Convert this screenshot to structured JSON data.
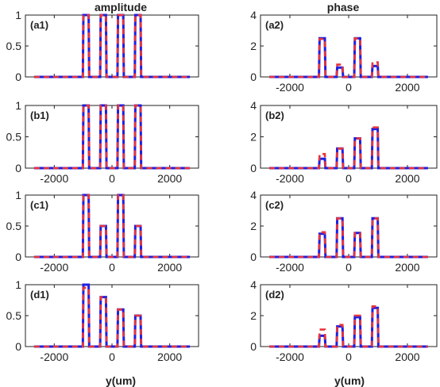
{
  "column_titles": [
    "amplitude",
    "phase"
  ],
  "x_axis_label": "y(um)",
  "colors": {
    "blue_series": "#1f1fe0",
    "red_series": "#e8343a",
    "axes": "#222222"
  },
  "chart_data": [
    {
      "label": "(a1)",
      "type": "line",
      "xlim": [
        -3000,
        3000
      ],
      "ylim": [
        0,
        1
      ],
      "xticks": [
        -2000,
        0,
        2000
      ],
      "yticks": [
        0,
        0.5,
        1
      ],
      "ytick_labels": [
        "0",
        "0.5",
        "1"
      ],
      "x_ticks_labeled": false,
      "pulses": [
        {
          "center": -900,
          "height": 1,
          "red_height": 1
        },
        {
          "center": -300,
          "height": 1,
          "red_height": 1
        },
        {
          "center": 300,
          "height": 1,
          "red_height": 1
        },
        {
          "center": 900,
          "height": 1,
          "red_height": 1
        }
      ]
    },
    {
      "label": "(a2)",
      "type": "line",
      "xlim": [
        -3000,
        3000
      ],
      "ylim": [
        0,
        4
      ],
      "xticks": [
        -2000,
        0,
        2000
      ],
      "yticks": [
        0,
        2,
        4
      ],
      "ytick_labels": [
        "0",
        "2",
        "4"
      ],
      "x_ticks_labeled": true,
      "pulses": [
        {
          "center": -900,
          "height": 2.5,
          "red_height": 2.45
        },
        {
          "center": -300,
          "height": 0.6,
          "red_height": 0.8
        },
        {
          "center": 300,
          "height": 2.5,
          "red_height": 2.5
        },
        {
          "center": 900,
          "height": 0.7,
          "red_height": 0.95
        }
      ]
    },
    {
      "label": "(b1)",
      "type": "line",
      "xlim": [
        -3000,
        3000
      ],
      "ylim": [
        0,
        1
      ],
      "xticks": [
        -2000,
        0,
        2000
      ],
      "yticks": [
        0,
        0.5,
        1
      ],
      "ytick_labels": [
        "0",
        "0.5",
        "1"
      ],
      "x_ticks_labeled": true,
      "pulses": [
        {
          "center": -900,
          "height": 1,
          "red_height": 1
        },
        {
          "center": -300,
          "height": 1,
          "red_height": 1
        },
        {
          "center": 300,
          "height": 1,
          "red_height": 1
        },
        {
          "center": 900,
          "height": 1,
          "red_height": 1
        }
      ]
    },
    {
      "label": "(b2)",
      "type": "line",
      "xlim": [
        -3000,
        3000
      ],
      "ylim": [
        0,
        4
      ],
      "xticks": [
        -2000,
        0,
        2000
      ],
      "yticks": [
        0,
        2,
        4
      ],
      "ytick_labels": [
        "0",
        "2",
        "4"
      ],
      "x_ticks_labeled": true,
      "pulses": [
        {
          "center": -900,
          "height": 0.6,
          "red_height": 0.9
        },
        {
          "center": -300,
          "height": 1.25,
          "red_height": 1.25
        },
        {
          "center": 300,
          "height": 1.9,
          "red_height": 1.9
        },
        {
          "center": 900,
          "height": 2.5,
          "red_height": 2.6
        }
      ]
    },
    {
      "label": "(c1)",
      "type": "line",
      "xlim": [
        -3000,
        3000
      ],
      "ylim": [
        0,
        1
      ],
      "xticks": [
        -2000,
        0,
        2000
      ],
      "yticks": [
        0,
        0.5,
        1
      ],
      "ytick_labels": [
        "0",
        "0.5",
        "1"
      ],
      "x_ticks_labeled": true,
      "pulses": [
        {
          "center": -900,
          "height": 1,
          "red_height": 1
        },
        {
          "center": -300,
          "height": 0.5,
          "red_height": 0.5
        },
        {
          "center": 300,
          "height": 1,
          "red_height": 1
        },
        {
          "center": 900,
          "height": 0.5,
          "red_height": 0.5
        }
      ]
    },
    {
      "label": "(c2)",
      "type": "line",
      "xlim": [
        -3000,
        3000
      ],
      "ylim": [
        0,
        4
      ],
      "xticks": [
        -2000,
        0,
        2000
      ],
      "yticks": [
        0,
        2,
        4
      ],
      "ytick_labels": [
        "0",
        "2",
        "4"
      ],
      "x_ticks_labeled": true,
      "pulses": [
        {
          "center": -900,
          "height": 1.5,
          "red_height": 1.6
        },
        {
          "center": -300,
          "height": 2.5,
          "red_height": 2.5
        },
        {
          "center": 300,
          "height": 1.55,
          "red_height": 1.55
        },
        {
          "center": 900,
          "height": 2.5,
          "red_height": 2.5
        }
      ]
    },
    {
      "label": "(d1)",
      "type": "line",
      "xlim": [
        -3000,
        3000
      ],
      "ylim": [
        0,
        1
      ],
      "xticks": [
        -2000,
        0,
        2000
      ],
      "yticks": [
        0,
        0.5,
        1
      ],
      "ytick_labels": [
        "0",
        "0.5",
        "1"
      ],
      "x_ticks_labeled": true,
      "pulses": [
        {
          "center": -900,
          "height": 1,
          "red_height": 0.95
        },
        {
          "center": -300,
          "height": 0.8,
          "red_height": 0.8
        },
        {
          "center": 300,
          "height": 0.6,
          "red_height": 0.6
        },
        {
          "center": 900,
          "height": 0.5,
          "red_height": 0.5
        }
      ]
    },
    {
      "label": "(d2)",
      "type": "line",
      "xlim": [
        -3000,
        3000
      ],
      "ylim": [
        0,
        4
      ],
      "xticks": [
        -2000,
        0,
        2000
      ],
      "yticks": [
        0,
        2,
        4
      ],
      "ytick_labels": [
        "0",
        "2",
        "4"
      ],
      "x_ticks_labeled": true,
      "pulses": [
        {
          "center": -900,
          "height": 0.7,
          "red_height": 1.1
        },
        {
          "center": -300,
          "height": 1.3,
          "red_height": 1.4
        },
        {
          "center": 300,
          "height": 1.9,
          "red_height": 2.0
        },
        {
          "center": 900,
          "height": 2.5,
          "red_height": 2.6
        }
      ]
    }
  ]
}
